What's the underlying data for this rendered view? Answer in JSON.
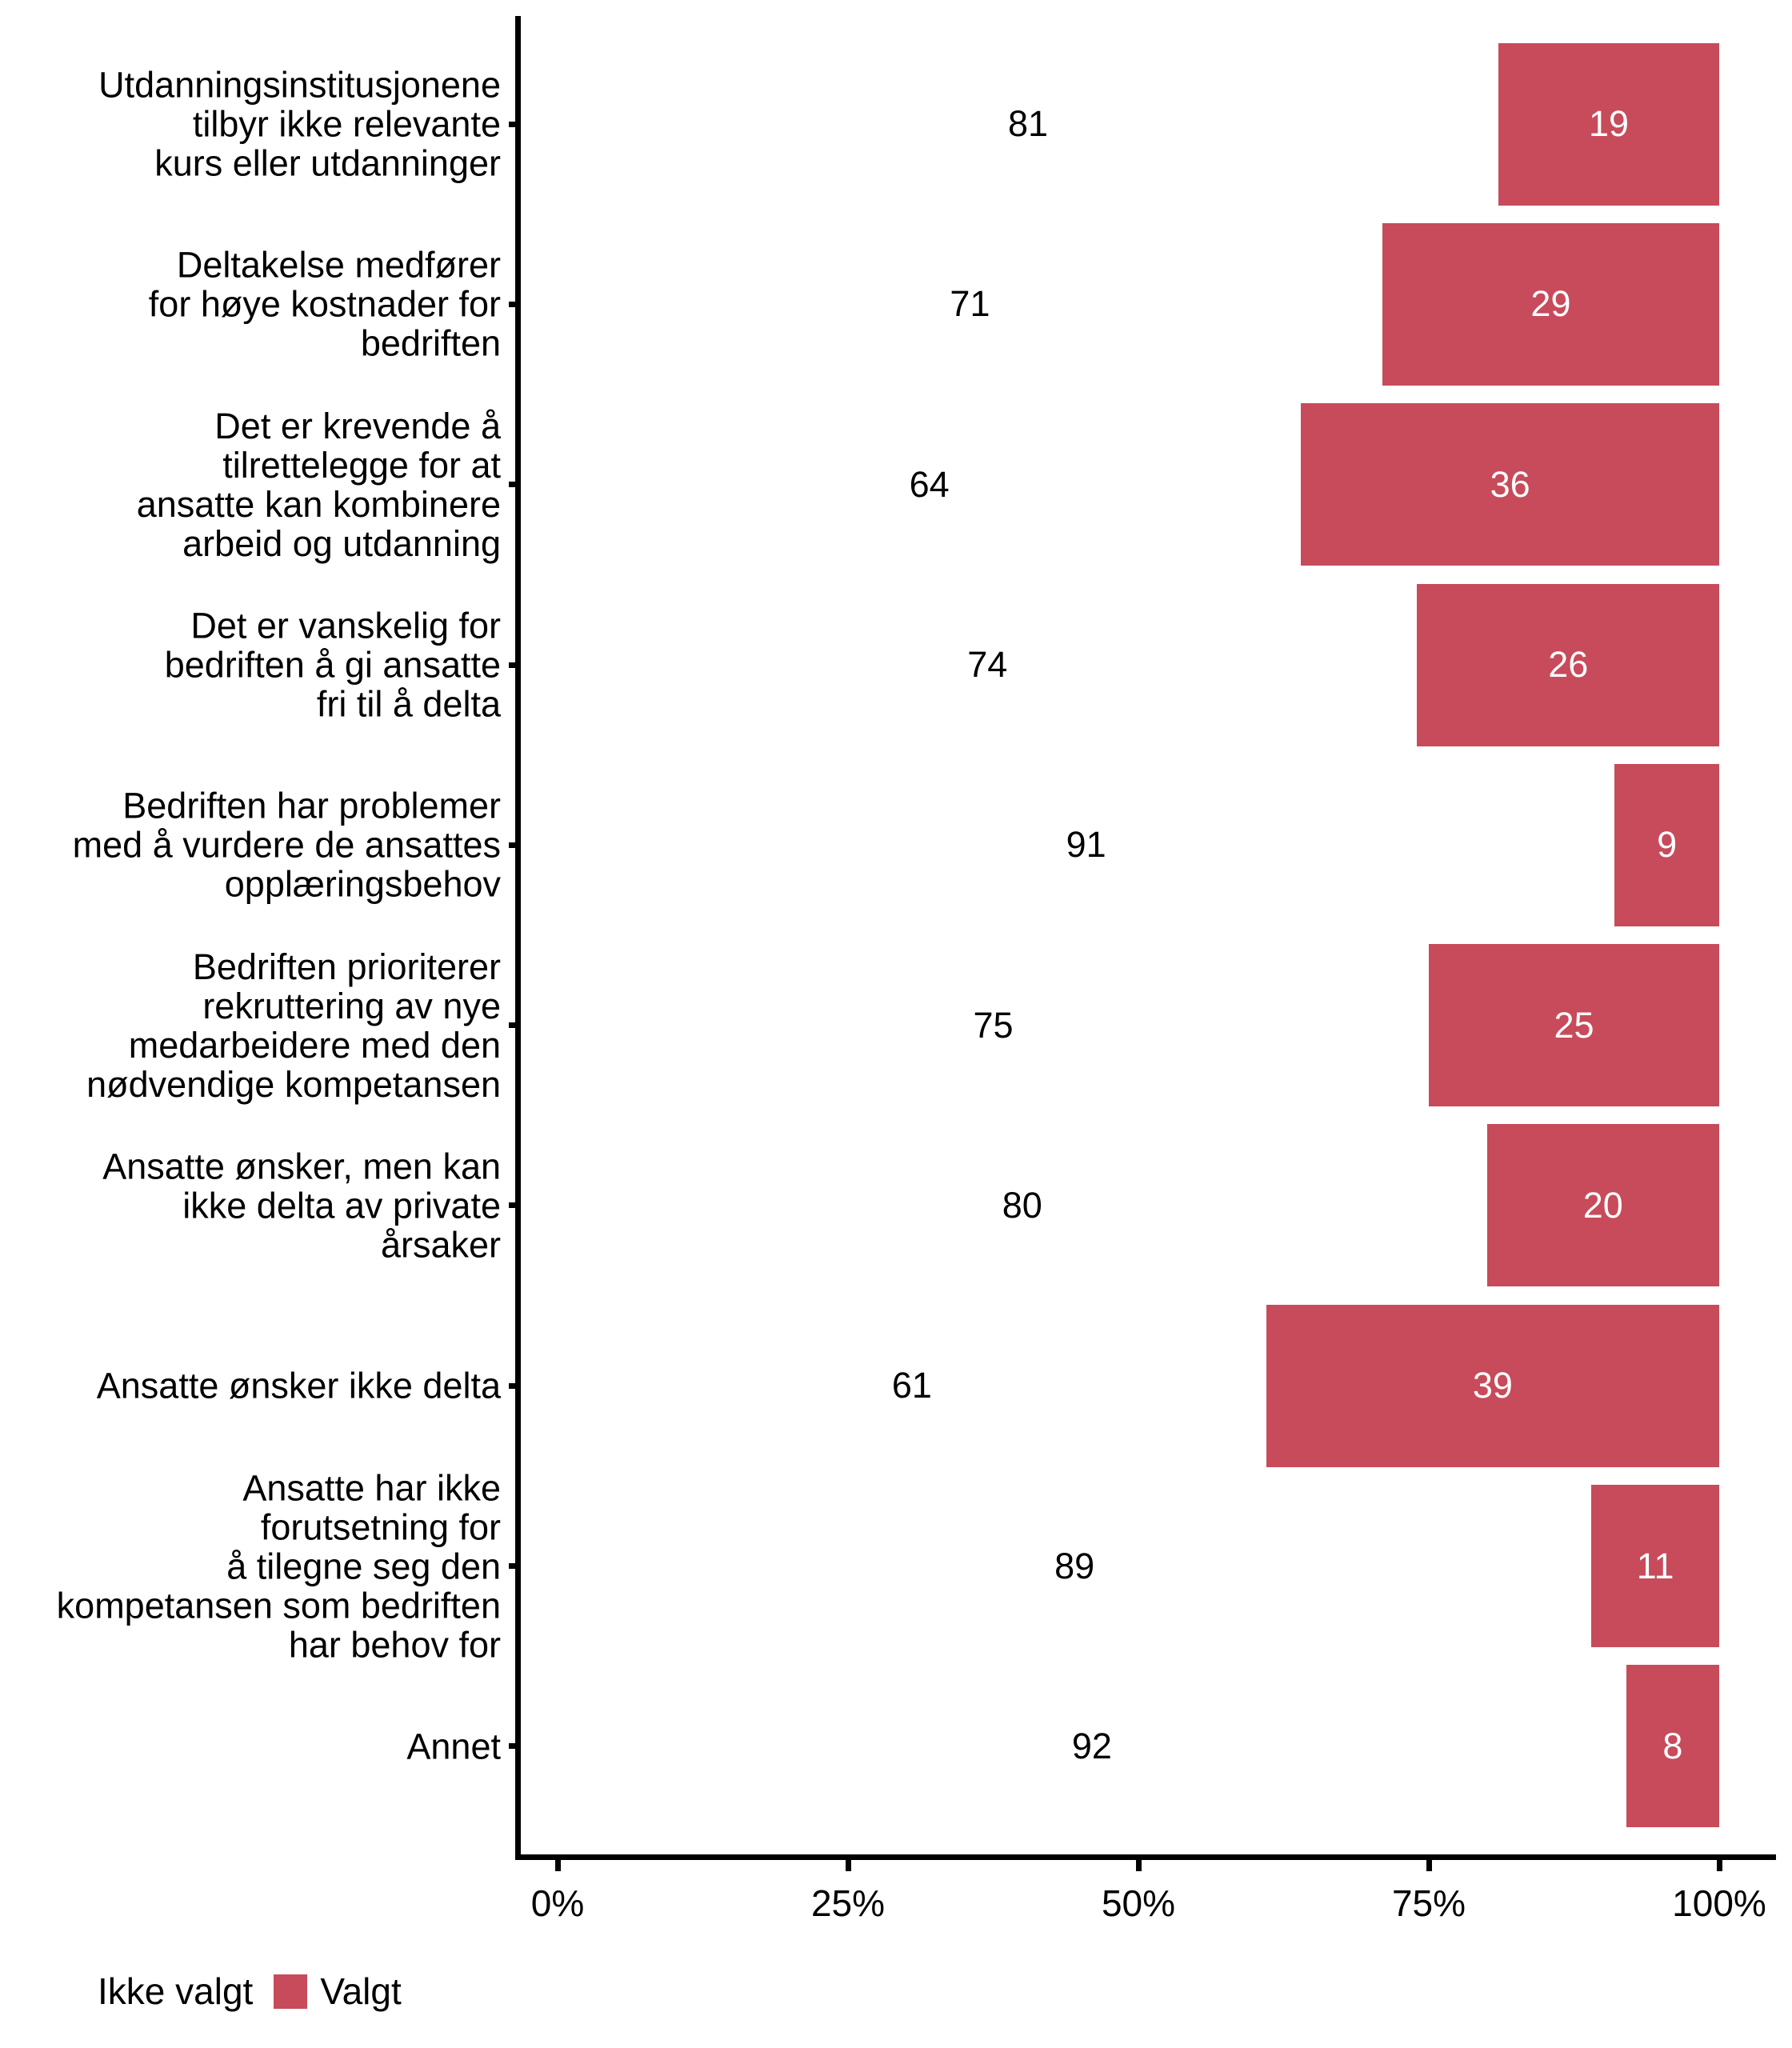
{
  "chart_data": {
    "type": "bar",
    "orientation": "horizontal",
    "stacked": true,
    "title": "",
    "xlabel": "",
    "ylabel": "",
    "xlim": [
      0,
      100
    ],
    "x_tick_values": [
      0,
      25,
      50,
      75,
      100
    ],
    "x_tick_labels": [
      "0%",
      "25%",
      "50%",
      "75%",
      "100%"
    ],
    "grid": false,
    "legend_position": "bottom-left",
    "value_labels": "centered-in-segment",
    "categories": [
      "Utdanningsinstitusjonene tilbyr ikke relevante kurs eller utdanninger",
      "Deltakelse medfører for høye kostnader for bedriften",
      "Det er krevende å tilrettelegge for at ansatte kan kombinere arbeid og utdanning",
      "Det er vanskelig for bedriften å gi ansatte fri til å delta",
      "Bedriften har problemer med å vurdere de ansattes opplæringsbehov",
      "Bedriften prioriterer rekruttering av nye medarbeidere med den nødvendige kompetansen",
      "Ansatte ønsker, men kan ikke delta av private årsaker",
      "Ansatte ønsker ikke delta",
      "Ansatte har ikke forutsetning for å tilegne seg den kompetansen som bedriften har behov for",
      "Annet"
    ],
    "category_lines": [
      [
        "Utdanningsinstitusjonene",
        "tilbyr ikke relevante",
        "kurs eller utdanninger"
      ],
      [
        "Deltakelse medfører",
        "for høye kostnader for",
        "bedriften"
      ],
      [
        "Det er krevende å",
        "tilrettelegge for at",
        "ansatte kan kombinere",
        "arbeid og utdanning"
      ],
      [
        "Det er vanskelig for",
        "bedriften å gi ansatte",
        "fri til å delta"
      ],
      [
        "Bedriften har problemer",
        "med å vurdere de ansattes",
        "opplæringsbehov"
      ],
      [
        "Bedriften prioriterer",
        "rekruttering av nye",
        "medarbeidere med den",
        "nødvendige kompetansen"
      ],
      [
        "Ansatte ønsker, men kan",
        "ikke delta av private",
        "årsaker"
      ],
      [
        "Ansatte ønsker ikke delta"
      ],
      [
        "Ansatte har ikke",
        "forutsetning for",
        "å tilegne seg den",
        "kompetansen som bedriften",
        "har behov for"
      ],
      [
        "Annet"
      ]
    ],
    "series": [
      {
        "name": "Ikke valgt",
        "color": "#FFFFFF",
        "label_color": "#000000",
        "values": [
          81,
          71,
          64,
          74,
          91,
          75,
          80,
          61,
          89,
          92
        ]
      },
      {
        "name": "Valgt",
        "color": "#C74B5B",
        "label_color": "#FFFFFF",
        "values": [
          19,
          29,
          36,
          26,
          9,
          25,
          20,
          39,
          11,
          8
        ]
      }
    ]
  },
  "legend": {
    "not_selected_label": "Ikke valgt",
    "selected_label": "Valgt"
  },
  "colors": {
    "selected": "#C74B5B",
    "not_selected": "#FFFFFF",
    "axis": "#000000",
    "background": "#FFFFFF"
  }
}
